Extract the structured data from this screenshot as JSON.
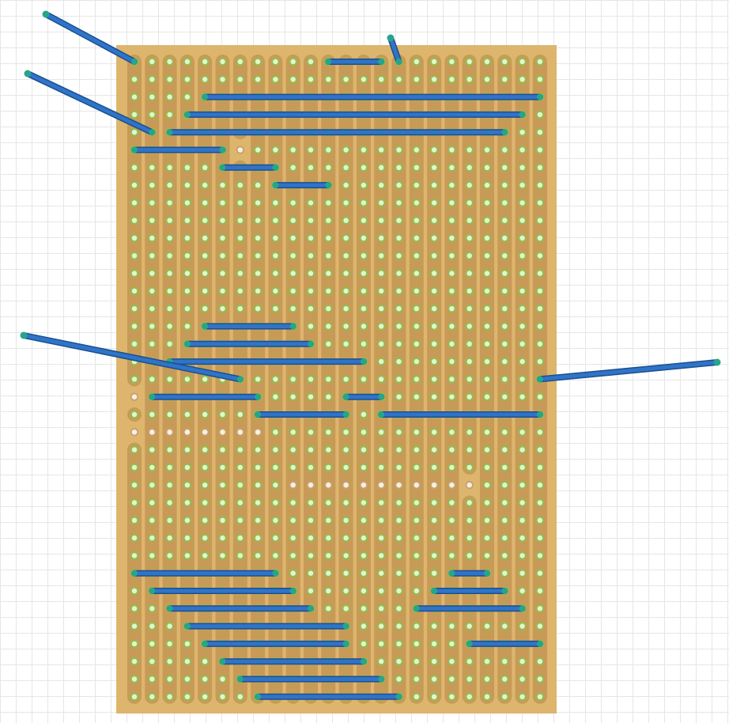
{
  "canvas": {
    "background": "#ffffff",
    "grid_color": "#e6e6e6"
  },
  "board": {
    "type": "stripboard",
    "columns": 24,
    "rows": 37,
    "board_color": "#ddb56d",
    "strip_color": "#c79b57",
    "pad_ring_color": "#8fbf4c",
    "pad_hole_color": "#e7f3d2",
    "cut_hole_color": "#f6efe4",
    "wire_color": "#2f74c8",
    "wire_edge_color": "#1b4f8f",
    "wire_end_color": "#27a58b",
    "strip_breaks": [
      {
        "col": 6,
        "row": 5
      },
      {
        "col": 0,
        "row": 19
      },
      {
        "col": 0,
        "row": 21
      },
      {
        "col": 19,
        "row": 24
      }
    ],
    "cut_holes": [
      {
        "col": 0,
        "row": 21
      },
      {
        "col": 1,
        "row": 21
      },
      {
        "col": 2,
        "row": 21
      },
      {
        "col": 3,
        "row": 21
      },
      {
        "col": 4,
        "row": 21
      },
      {
        "col": 5,
        "row": 21
      },
      {
        "col": 6,
        "row": 21
      },
      {
        "col": 7,
        "row": 21
      },
      {
        "col": 9,
        "row": 24
      },
      {
        "col": 10,
        "row": 24
      },
      {
        "col": 11,
        "row": 24
      },
      {
        "col": 12,
        "row": 24
      },
      {
        "col": 13,
        "row": 24
      },
      {
        "col": 14,
        "row": 24
      },
      {
        "col": 15,
        "row": 24
      },
      {
        "col": 16,
        "row": 24
      },
      {
        "col": 17,
        "row": 24
      },
      {
        "col": 18,
        "row": 24
      }
    ],
    "jumpers": [
      {
        "row": 0,
        "from": 11,
        "to": 14
      },
      {
        "row": 2,
        "from": 4,
        "to": 23
      },
      {
        "row": 3,
        "from": 3,
        "to": 22
      },
      {
        "row": 4,
        "from": 2,
        "to": 21
      },
      {
        "row": 5,
        "from": 0,
        "to": 5
      },
      {
        "row": 6,
        "from": 5,
        "to": 8
      },
      {
        "row": 7,
        "from": 8,
        "to": 11
      },
      {
        "row": 15,
        "from": 4,
        "to": 9
      },
      {
        "row": 16,
        "from": 3,
        "to": 10
      },
      {
        "row": 17,
        "from": 2,
        "to": 13
      },
      {
        "row": 19,
        "from": 1,
        "to": 7
      },
      {
        "row": 19,
        "from": 12,
        "to": 14
      },
      {
        "row": 20,
        "from": 7,
        "to": 12
      },
      {
        "row": 20,
        "from": 14,
        "to": 23
      },
      {
        "row": 29,
        "from": 0,
        "to": 8
      },
      {
        "row": 29,
        "from": 18,
        "to": 20
      },
      {
        "row": 30,
        "from": 1,
        "to": 9
      },
      {
        "row": 30,
        "from": 17,
        "to": 21
      },
      {
        "row": 31,
        "from": 2,
        "to": 10
      },
      {
        "row": 31,
        "from": 16,
        "to": 22
      },
      {
        "row": 32,
        "from": 3,
        "to": 12
      },
      {
        "row": 33,
        "from": 4,
        "to": 12
      },
      {
        "row": 33,
        "from": 19,
        "to": 23
      },
      {
        "row": 34,
        "from": 5,
        "to": 13
      },
      {
        "row": 35,
        "from": 6,
        "to": 14
      },
      {
        "row": 36,
        "from": 7,
        "to": 15
      }
    ],
    "leads": [
      {
        "col": 0,
        "row": 0,
        "dir": "up-left"
      },
      {
        "col": 1,
        "row": 4,
        "dir": "up-left"
      },
      {
        "col": 15,
        "row": 0,
        "dir": "up"
      },
      {
        "col": 6,
        "row": 18,
        "dir": "left"
      },
      {
        "col": 23,
        "row": 18,
        "dir": "right"
      }
    ]
  }
}
